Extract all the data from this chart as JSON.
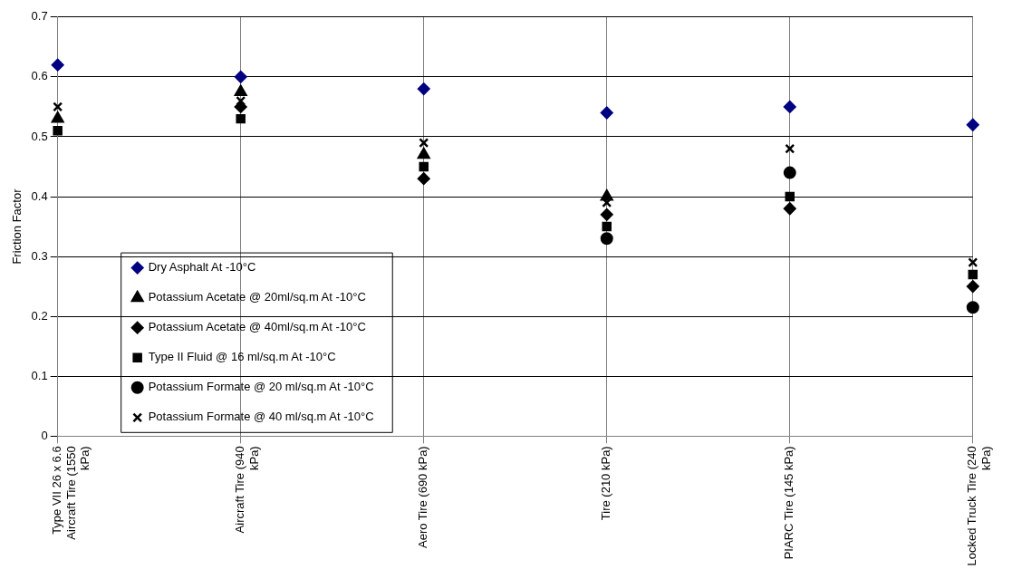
{
  "chart_data": {
    "type": "scatter",
    "ylabel": "Friction Factor",
    "categories": [
      "Type VII 26 x 6.6 Aircraft Tire (1550 kPa)",
      "Aircraft Tire (940 kPa)",
      "Aero Tire (690 kPa)",
      "Tire (210 kPa)",
      "PIARC Tire (145 kPa)",
      "Locked Truck Tire (240 kPa)"
    ],
    "series": [
      {
        "name": "Dry Asphalt At -10°C",
        "color": "#000080",
        "marker": "diamond",
        "values": [
          0.62,
          0.6,
          0.58,
          0.54,
          0.55,
          0.52
        ]
      },
      {
        "name": "Potassium Acetate @ 20ml/sq.m At -10°C",
        "color": "#000000",
        "marker": "triangle",
        "values": [
          0.53,
          0.575,
          0.47,
          0.4,
          null,
          null
        ]
      },
      {
        "name": "Potassium Acetate @ 40ml/sq.m At -10°C",
        "color": "#000000",
        "marker": "diamond",
        "values": [
          null,
          0.55,
          0.43,
          0.37,
          0.38,
          0.25
        ]
      },
      {
        "name": "Type II Fluid @ 16 ml/sq.m At -10°C",
        "color": "#000000",
        "marker": "square",
        "values": [
          0.51,
          0.53,
          0.45,
          0.35,
          0.4,
          0.27
        ]
      },
      {
        "name": "Potassium Formate @ 20 ml/sq.m At -10°C",
        "color": "#000000",
        "marker": "circle",
        "values": [
          null,
          null,
          null,
          0.33,
          0.44,
          0.215
        ]
      },
      {
        "name": "Potassium Formate @ 40 ml/sq.m At -10°C",
        "color": "#000000",
        "marker": "cross",
        "values": [
          0.55,
          0.56,
          0.49,
          0.39,
          0.48,
          0.29
        ]
      }
    ],
    "ylim": [
      0,
      0.7
    ],
    "yticks": [
      0,
      0.1,
      0.2,
      0.3,
      0.4,
      0.5,
      0.6,
      0.7
    ],
    "grid": true,
    "legend": "bottom left"
  }
}
